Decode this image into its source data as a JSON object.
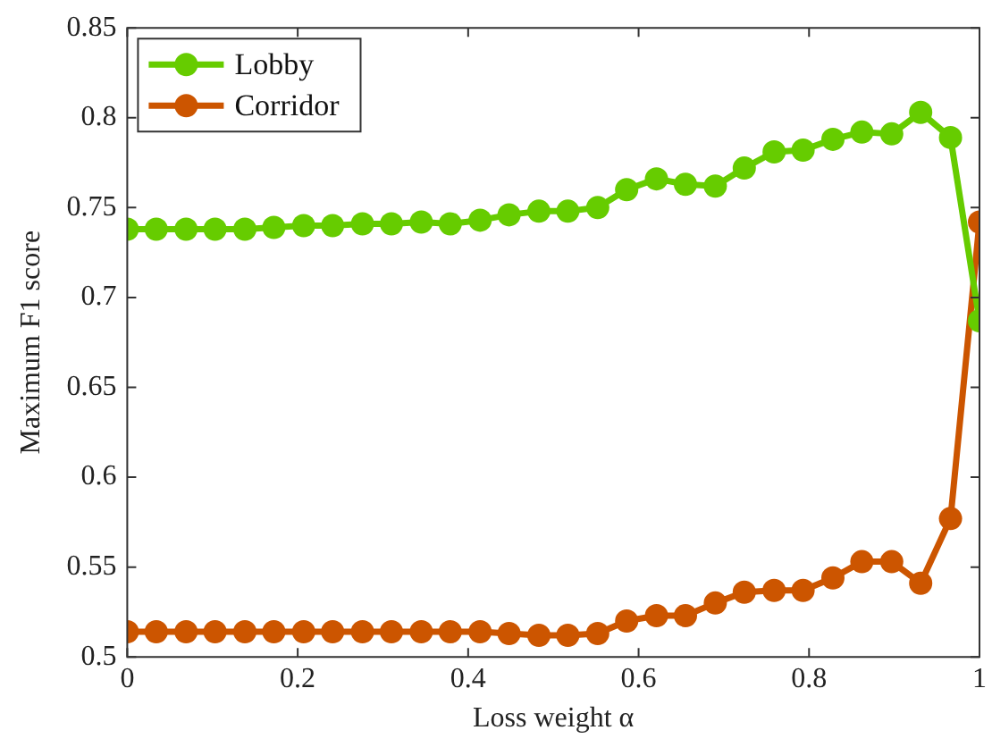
{
  "chart_data": {
    "type": "line",
    "xlabel": "Loss weight α",
    "ylabel": "Maximum F1 score",
    "x": [
      0,
      0.034,
      0.069,
      0.103,
      0.138,
      0.172,
      0.207,
      0.241,
      0.276,
      0.31,
      0.345,
      0.379,
      0.414,
      0.448,
      0.483,
      0.517,
      0.552,
      0.586,
      0.621,
      0.655,
      0.69,
      0.724,
      0.759,
      0.793,
      0.828,
      0.862,
      0.897,
      0.931,
      0.966,
      1
    ],
    "series": [
      {
        "name": "Lobby",
        "color": "#66cc00",
        "values": [
          0.738,
          0.738,
          0.738,
          0.738,
          0.738,
          0.739,
          0.74,
          0.74,
          0.741,
          0.741,
          0.742,
          0.741,
          0.743,
          0.746,
          0.748,
          0.748,
          0.75,
          0.76,
          0.766,
          0.763,
          0.762,
          0.772,
          0.781,
          0.782,
          0.788,
          0.792,
          0.791,
          0.803,
          0.789,
          0.687
        ]
      },
      {
        "name": "Corridor",
        "color": "#cc5500",
        "values": [
          0.514,
          0.514,
          0.514,
          0.514,
          0.514,
          0.514,
          0.514,
          0.514,
          0.514,
          0.514,
          0.514,
          0.514,
          0.514,
          0.513,
          0.512,
          0.512,
          0.513,
          0.52,
          0.523,
          0.523,
          0.53,
          0.536,
          0.537,
          0.537,
          0.544,
          0.553,
          0.553,
          0.541,
          0.577,
          0.742
        ]
      }
    ],
    "xlim": [
      0,
      1
    ],
    "xticks": [
      0,
      0.2,
      0.4,
      0.6,
      0.8,
      1
    ],
    "ylim": [
      0.5,
      0.85
    ],
    "yticks": [
      0.5,
      0.55,
      0.6,
      0.65,
      0.7,
      0.75,
      0.8,
      0.85
    ],
    "grid": false,
    "legend": "top left",
    "marker": "circle",
    "line_style": "solid"
  }
}
